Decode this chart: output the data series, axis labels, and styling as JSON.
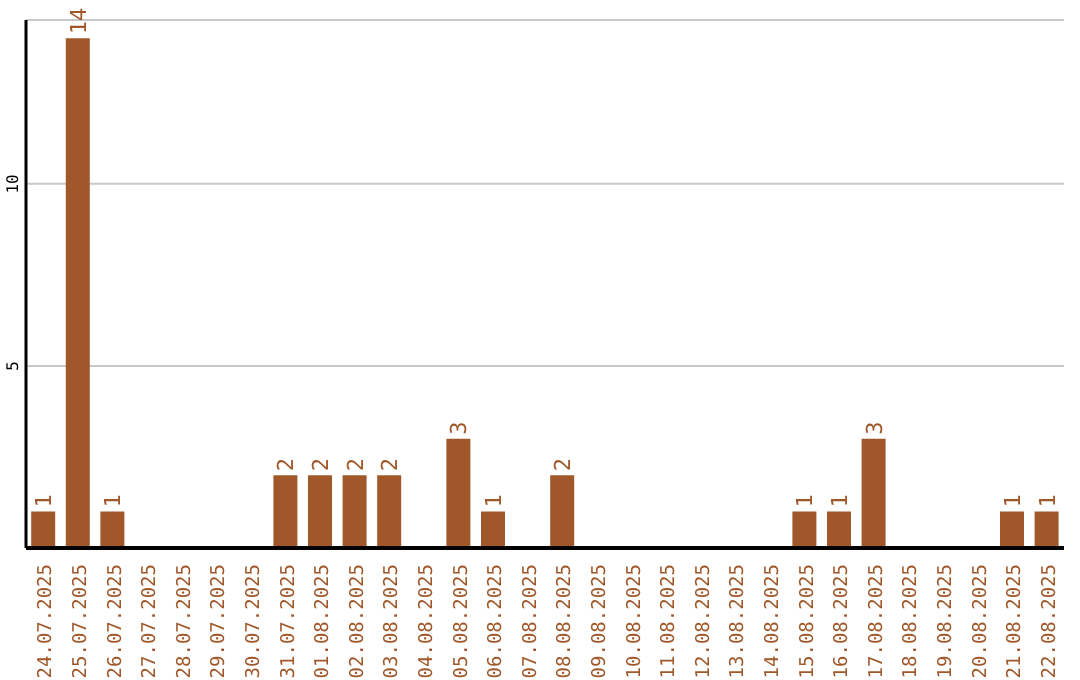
{
  "chart_data": {
    "type": "bar",
    "categories": [
      "24.07.2025",
      "25.07.2025",
      "26.07.2025",
      "27.07.2025",
      "28.07.2025",
      "29.07.2025",
      "30.07.2025",
      "31.07.2025",
      "01.08.2025",
      "02.08.2025",
      "03.08.2025",
      "04.08.2025",
      "05.08.2025",
      "06.08.2025",
      "07.08.2025",
      "08.08.2025",
      "09.08.2025",
      "10.08.2025",
      "11.08.2025",
      "12.08.2025",
      "13.08.2025",
      "14.08.2025",
      "15.08.2025",
      "16.08.2025",
      "17.08.2025",
      "18.08.2025",
      "19.08.2025",
      "20.08.2025",
      "21.08.2025",
      "22.08.2025"
    ],
    "values": [
      1,
      14,
      1,
      0,
      0,
      0,
      0,
      2,
      2,
      2,
      2,
      0,
      3,
      1,
      0,
      2,
      0,
      0,
      0,
      0,
      0,
      0,
      1,
      1,
      3,
      0,
      0,
      0,
      1,
      1
    ],
    "value_labels": [
      "1",
      "14",
      "1",
      null,
      null,
      null,
      null,
      "2",
      "2",
      "2",
      "2",
      null,
      "3",
      "1",
      null,
      "2",
      null,
      null,
      null,
      null,
      null,
      null,
      "1",
      "1",
      "3",
      null,
      null,
      null,
      "1",
      "1"
    ],
    "color": "#a0582a",
    "ylim": [
      0,
      14.5
    ],
    "yticks": [
      5,
      10
    ],
    "grid": "y"
  }
}
